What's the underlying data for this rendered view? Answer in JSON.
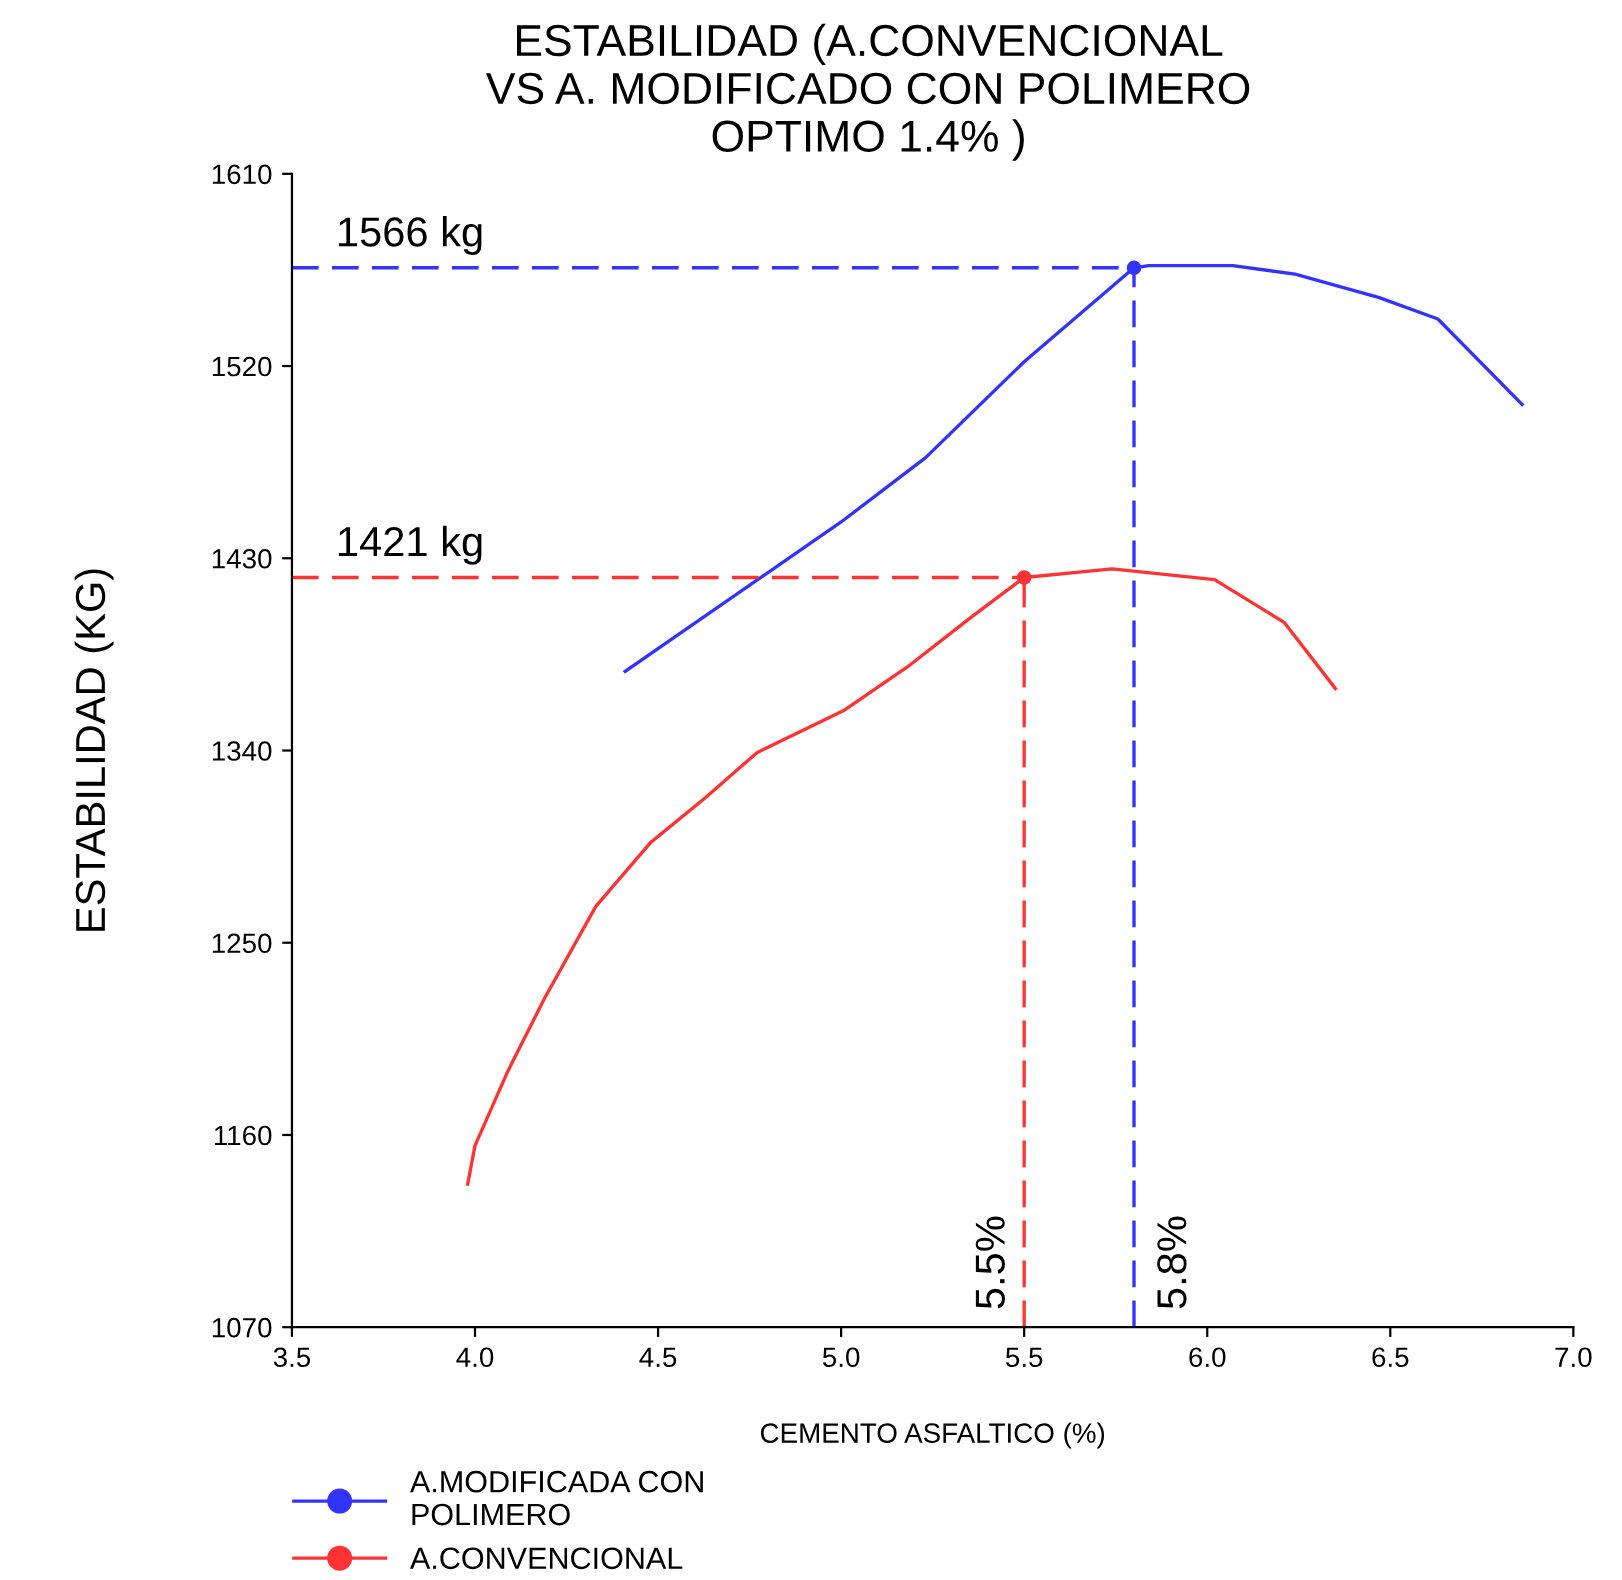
{
  "chart_data": {
    "type": "line",
    "title": "ESTABILIDAD (A.CONVENCIONAL\nVS A. MODIFICADO CON POLIMERO\nOPTIMO 1.4% )",
    "xlabel": "CEMENTO ASFALTICO (%)",
    "ylabel": "ESTABILIDAD (KG)",
    "series": [
      {
        "name": "A.MODIFICADA CON\nPOLIMERO",
        "color": "#3333ff",
        "x": [
          4.41,
          5.0,
          5.23,
          5.5,
          5.8,
          5.84,
          6.07,
          6.24,
          6.47,
          6.63,
          6.86
        ],
        "values": [
          1377,
          1447,
          1477,
          1522,
          1566,
          1567,
          1567,
          1563,
          1552,
          1542,
          1502
        ]
      },
      {
        "name": "A.CONVENCIONAL",
        "color": "#ff3333",
        "x": [
          3.98,
          4.0,
          4.09,
          4.19,
          4.33,
          4.48,
          4.63,
          4.77,
          5.01,
          5.18,
          5.36,
          5.5,
          5.74,
          6.02,
          6.21,
          6.35
        ],
        "values": [
          1137,
          1155,
          1190,
          1224,
          1267,
          1297,
          1318,
          1339,
          1359,
          1379,
          1403,
          1421,
          1425,
          1420,
          1400,
          1369
        ]
      },
      {
        "type": "scatter",
        "color": "#3333ff",
        "marker": "circle",
        "x": [
          5.8
        ],
        "values": [
          1566
        ]
      },
      {
        "type": "scatter",
        "color": "#ff3333",
        "marker": "circle",
        "x": [
          5.5
        ],
        "values": [
          1421
        ]
      }
    ],
    "ref_lines": [
      {
        "axis": "y",
        "value": 1566,
        "label": "1566 kg",
        "color": "#3333ff",
        "line_style": "dashed"
      },
      {
        "axis": "y",
        "value": 1421,
        "label": "1421 kg",
        "color": "#ff3333",
        "line_style": "dashed"
      },
      {
        "axis": "x",
        "value": 5.5,
        "label": "5.5%",
        "color": "#ff3333",
        "line_style": "dashed"
      },
      {
        "axis": "x",
        "value": 5.8,
        "label": "5.8%",
        "color": "#3333ff",
        "line_style": "dashed"
      }
    ],
    "xlim": [
      3.5,
      7.0
    ],
    "xticks": [
      3.5,
      {
        "value": 4,
        "label": "4.0"
      },
      4.5,
      {
        "value": 5,
        "label": "5.0"
      },
      5.5,
      {
        "value": 6,
        "label": "6.0"
      },
      6.5,
      {
        "value": 7,
        "label": "7.0"
      }
    ],
    "ylim": [
      1070,
      1610
    ],
    "yticks": [
      1070,
      1160,
      1250,
      1340,
      1430,
      1520,
      1610
    ],
    "grid": false,
    "legend": "bottom",
    "line_style": "solid"
  }
}
